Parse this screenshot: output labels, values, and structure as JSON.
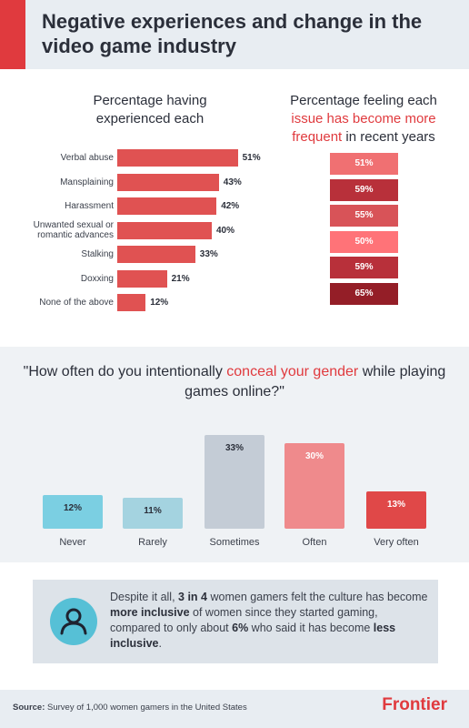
{
  "header": {
    "title": "Negative experiences and change in the video game industry"
  },
  "colors": {
    "accent": "#e03a3e",
    "teal": "#56c0d6"
  },
  "chart_data": [
    {
      "type": "bar",
      "orientation": "horizontal",
      "title": "Percentage having experienced each",
      "categories": [
        "Verbal abuse",
        "Mansplaining",
        "Harassment",
        "Unwanted sexual or romantic advances",
        "Stalking",
        "Doxxing",
        "None of the above"
      ],
      "values": [
        51,
        43,
        42,
        40,
        33,
        21,
        12
      ],
      "value_labels": [
        "51%",
        "43%",
        "42%",
        "40%",
        "33%",
        "21%",
        "12%"
      ],
      "color": "#e05252"
    },
    {
      "type": "table",
      "title_parts": [
        "Percentage feeling each",
        "issue has become more frequent",
        "in recent years"
      ],
      "values": [
        51,
        59,
        55,
        50,
        59,
        65
      ],
      "value_labels": [
        "51%",
        "59%",
        "55%",
        "50%",
        "59%",
        "65%"
      ],
      "colors": [
        "#f07072",
        "#b8303a",
        "#d85358",
        "#ff7378",
        "#b8303a",
        "#941e27"
      ]
    },
    {
      "type": "bar",
      "title_parts": [
        "\"How often do you intentionally ",
        "conceal your gender",
        " while playing games online?\""
      ],
      "categories": [
        "Never",
        "Rarely",
        "Sometimes",
        "Often",
        "Very often"
      ],
      "values": [
        12,
        11,
        33,
        30,
        13
      ],
      "value_labels": [
        "12%",
        "11%",
        "33%",
        "30%",
        "13%"
      ],
      "colors": [
        "#7bcfe2",
        "#a4d3e0",
        "#c4ccd6",
        "#ef8a8c",
        "#e04848"
      ],
      "label_colors": [
        "#2b2f3a",
        "#2b2f3a",
        "#2b2f3a",
        "#ffffff",
        "#ffffff"
      ]
    }
  ],
  "callout": {
    "icon": "person-icon",
    "t1": "Despite it all, ",
    "b1": "3 in 4",
    "t2": " women gamers felt the culture has become ",
    "b2": "more inclusive",
    "t3": " of women since they started gaming, compared to only about ",
    "b3": "6%",
    "t4": " who said it has become ",
    "b4": "less inclusive",
    "t5": "."
  },
  "footer": {
    "source_label": "Source:",
    "source_text": " Survey of 1,000 women gamers in the United States",
    "logo": "Frontier"
  }
}
